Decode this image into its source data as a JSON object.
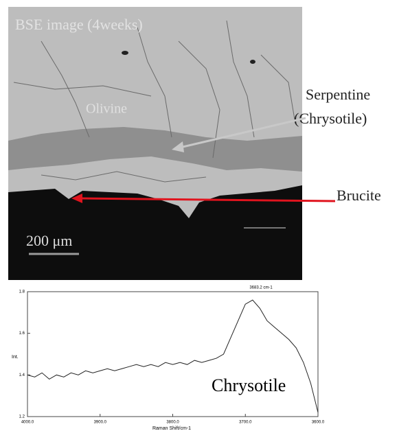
{
  "figure": {
    "image_title": "BSE image (4weeks)",
    "olivine": "Olivine",
    "serpentine": "Serpentine",
    "chrysotile": "(Chrysotile)",
    "brucite": "Brucite",
    "scale_bar": "200 μm"
  },
  "chart_data": {
    "type": "line",
    "y_label": "Int.",
    "x_label": "Raman Shift/cm-1",
    "peak_label": "3683.2 cm-1",
    "inset_label": "Chrysotile",
    "color": "#222222",
    "x": [
      4000,
      3990,
      3980,
      3970,
      3960,
      3950,
      3940,
      3930,
      3920,
      3910,
      3900,
      3890,
      3880,
      3870,
      3860,
      3850,
      3840,
      3830,
      3820,
      3810,
      3800,
      3790,
      3780,
      3770,
      3760,
      3750,
      3740,
      3730,
      3720,
      3710,
      3700,
      3690,
      3680,
      3670,
      3660,
      3650,
      3640,
      3630,
      3620,
      3610,
      3600
    ],
    "values": [
      1.4,
      1.39,
      1.41,
      1.38,
      1.4,
      1.39,
      1.41,
      1.4,
      1.42,
      1.41,
      1.42,
      1.43,
      1.42,
      1.43,
      1.44,
      1.45,
      1.44,
      1.45,
      1.44,
      1.46,
      1.45,
      1.46,
      1.45,
      1.47,
      1.46,
      1.47,
      1.48,
      1.5,
      1.58,
      1.66,
      1.74,
      1.76,
      1.72,
      1.66,
      1.63,
      1.6,
      1.57,
      1.53,
      1.46,
      1.36,
      1.22
    ],
    "xlim": [
      4000,
      3600
    ],
    "xticks": [
      {
        "value": 4000,
        "label": "4000.0"
      },
      {
        "value": 3900,
        "label": "3900.0"
      },
      {
        "value": 3800,
        "label": "3800.0"
      },
      {
        "value": 3700,
        "label": "3700.0"
      },
      {
        "value": 3600,
        "label": "3600.0"
      }
    ],
    "ylim": [
      1.2,
      1.8
    ],
    "yticks": [
      1.2,
      1.4,
      1.6,
      1.8
    ]
  }
}
